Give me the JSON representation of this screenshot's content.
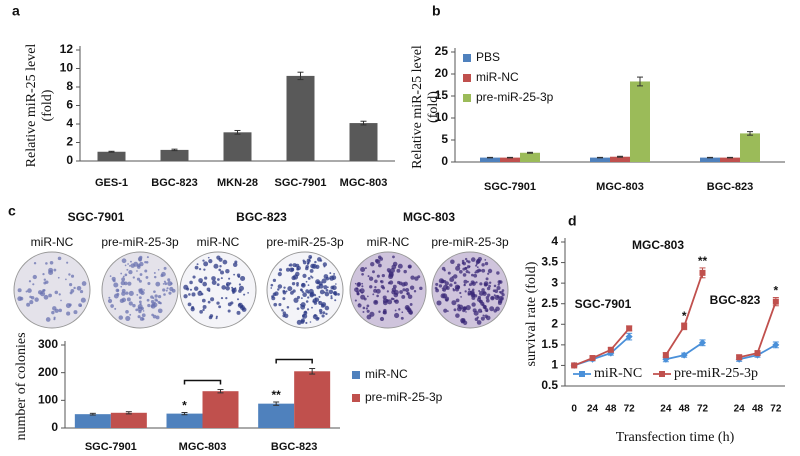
{
  "chart_data": [
    {
      "type": "bar",
      "label": "a",
      "ylabel": [
        "Relative miR-25 level",
        "(fold)"
      ],
      "categories": [
        "GES-1",
        "BGC-823",
        "MKN-28",
        "SGC-7901",
        "MGC-803"
      ],
      "values": [
        1,
        1.2,
        3.1,
        9.2,
        4.1
      ],
      "errors": [
        0.05,
        0.08,
        0.2,
        0.4,
        0.2
      ],
      "color": "#595959",
      "ylim": [
        0,
        12
      ],
      "yticks": [
        0,
        2,
        4,
        6,
        8,
        10,
        12
      ]
    },
    {
      "type": "bar",
      "label": "b",
      "ylabel": [
        "Relative miR-25 level",
        "(fold)"
      ],
      "categories": [
        "SGC-7901",
        "MGC-803",
        "BGC-823"
      ],
      "series": [
        {
          "name": "PBS",
          "color": "#4f81bd",
          "values": [
            1,
            1,
            1
          ],
          "errors": [
            0.05,
            0.05,
            0.05
          ]
        },
        {
          "name": "miR-NC",
          "color": "#c0504d",
          "values": [
            1,
            1.2,
            1
          ],
          "errors": [
            0.05,
            0.1,
            0.05
          ]
        },
        {
          "name": "pre-miR-25-3p",
          "color": "#9bbb59",
          "values": [
            2.1,
            18.3,
            6.5
          ],
          "errors": [
            0.1,
            1,
            0.4
          ]
        }
      ],
      "ylim": [
        0,
        25
      ],
      "yticks": [
        0,
        5,
        10,
        15,
        20,
        25
      ],
      "legend": "upper left"
    },
    {
      "type": "bar",
      "label": "c",
      "image_groups": [
        {
          "title": "SGC-7901",
          "labels": [
            "miR-NC",
            "pre-miR-25-3p"
          ]
        },
        {
          "title": "BGC-823",
          "labels": [
            "miR-NC",
            "pre-miR-25-3p"
          ]
        },
        {
          "title": "MGC-803",
          "labels": [
            "miR-NC",
            "pre-miR-25-3p"
          ]
        }
      ],
      "ylabel": [
        "number of colonies"
      ],
      "categories": [
        "SGC-7901",
        "MGC-803",
        "BGC-823"
      ],
      "series": [
        {
          "name": "miR-NC",
          "color": "#4f81bd",
          "values": [
            50,
            52,
            88
          ],
          "errors": [
            3,
            4,
            6
          ]
        },
        {
          "name": "pre-miR-25-3p",
          "color": "#c0504d",
          "values": [
            55,
            133,
            205
          ],
          "errors": [
            4,
            6,
            10
          ]
        }
      ],
      "annotations": [
        "*",
        "**"
      ],
      "ylim": [
        0,
        300
      ],
      "yticks": [
        0,
        100,
        200,
        300
      ],
      "legend": "right"
    },
    {
      "type": "line",
      "label": "d",
      "ylabel": [
        "survival rate (fold)"
      ],
      "xlabel": "Transfection time (h)",
      "categories": [
        "0",
        "24",
        "48",
        "72",
        null,
        "24",
        "48",
        "72",
        null,
        "24",
        "48",
        "72"
      ],
      "series": [
        {
          "name": "miR-NC",
          "color": "#4a90d9",
          "values": [
            1.0,
            1.15,
            1.3,
            1.7,
            null,
            1.15,
            1.25,
            1.55,
            null,
            1.15,
            1.25,
            1.5
          ],
          "errors": [
            0.03,
            0.04,
            0.05,
            0.08,
            null,
            0.06,
            0.05,
            0.07,
            null,
            0.05,
            0.05,
            0.07
          ]
        },
        {
          "name": "pre-miR-25-3p",
          "color": "#c0504d",
          "values": [
            1.0,
            1.18,
            1.38,
            1.9,
            null,
            1.25,
            1.95,
            3.25,
            null,
            1.2,
            1.3,
            2.55
          ],
          "errors": [
            0.03,
            0.04,
            0.05,
            0.06,
            null,
            0.06,
            0.08,
            0.12,
            null,
            0.05,
            0.05,
            0.1
          ]
        }
      ],
      "annotations": [
        "SGC-7901",
        "MGC-803",
        "BGC-823",
        "*",
        "**",
        "*"
      ],
      "ylim": [
        0.5,
        4
      ],
      "yticks": [
        0.5,
        1,
        1.5,
        2,
        2.5,
        3,
        3.5,
        4
      ],
      "legend": "lower center"
    }
  ]
}
